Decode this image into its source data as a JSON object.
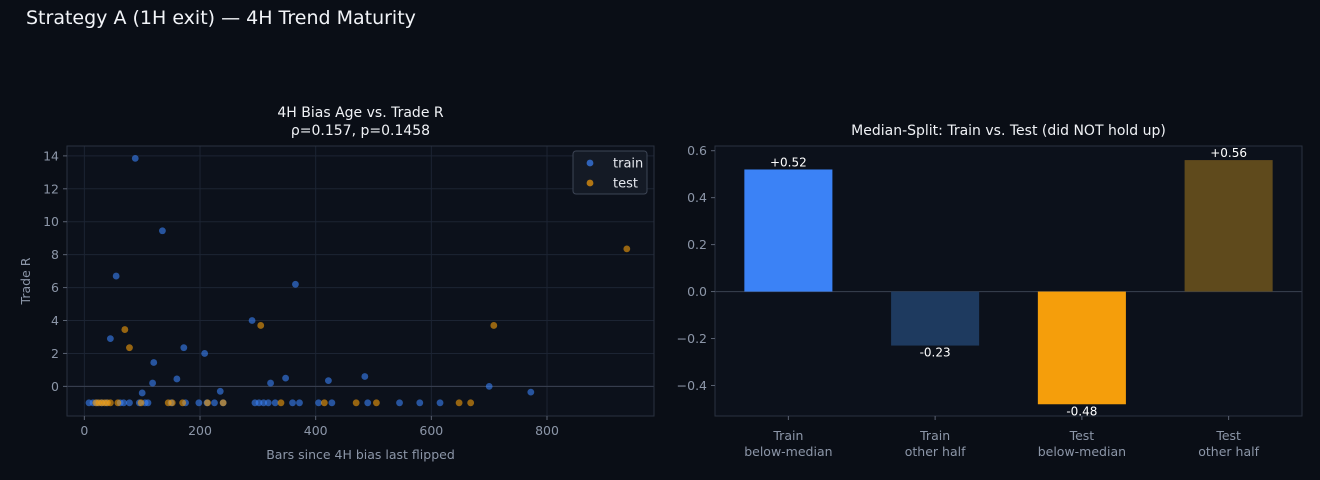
{
  "page_title": "Strategy A (1H exit) — 4H Trend Maturity",
  "chart_data": [
    {
      "type": "scatter",
      "title_line1": "4H Bias Age vs. Trade R",
      "title_line2": "ρ=0.157, p=0.1458",
      "xlabel": "Bars since 4H bias last flipped",
      "ylabel": "Trade R",
      "xlim": [
        -30,
        985
      ],
      "ylim": [
        -1.8,
        14.6
      ],
      "xticks": [
        0,
        200,
        400,
        600,
        800
      ],
      "yticks": [
        0,
        2,
        4,
        6,
        8,
        10,
        12,
        14
      ],
      "grid": true,
      "legend_position": "top-right",
      "series": [
        {
          "name": "train",
          "color": "#3b82f6",
          "points": [
            [
              8,
              -1
            ],
            [
              15,
              -1
            ],
            [
              22,
              -1
            ],
            [
              30,
              -1
            ],
            [
              38,
              -1
            ],
            [
              45,
              2.9
            ],
            [
              55,
              6.7
            ],
            [
              62,
              -1
            ],
            [
              68,
              -1
            ],
            [
              78,
              -1
            ],
            [
              88,
              13.85
            ],
            [
              95,
              -1
            ],
            [
              100,
              -0.4
            ],
            [
              105,
              -1
            ],
            [
              110,
              -1
            ],
            [
              118,
              0.2
            ],
            [
              120,
              1.45
            ],
            [
              135,
              9.45
            ],
            [
              150,
              -1
            ],
            [
              160,
              0.45
            ],
            [
              172,
              2.35
            ],
            [
              175,
              -1
            ],
            [
              198,
              -1
            ],
            [
              208,
              2.0
            ],
            [
              212,
              -1
            ],
            [
              225,
              -1
            ],
            [
              235,
              -0.3
            ],
            [
              240,
              -1
            ],
            [
              290,
              4.0
            ],
            [
              295,
              -1
            ],
            [
              302,
              -1
            ],
            [
              310,
              -1
            ],
            [
              318,
              -1
            ],
            [
              322,
              0.2
            ],
            [
              330,
              -1
            ],
            [
              348,
              0.5
            ],
            [
              360,
              -1
            ],
            [
              365,
              6.2
            ],
            [
              372,
              -1
            ],
            [
              405,
              -1
            ],
            [
              422,
              0.35
            ],
            [
              428,
              -1
            ],
            [
              485,
              0.6
            ],
            [
              490,
              -1
            ],
            [
              545,
              -1
            ],
            [
              580,
              -1
            ],
            [
              615,
              -1
            ],
            [
              700,
              0
            ],
            [
              772,
              -0.35
            ]
          ]
        },
        {
          "name": "test",
          "color": "#f59e0b",
          "points": [
            [
              20,
              -1
            ],
            [
              25,
              -1
            ],
            [
              30,
              -1
            ],
            [
              35,
              -1
            ],
            [
              40,
              -1
            ],
            [
              45,
              -1
            ],
            [
              58,
              -1
            ],
            [
              70,
              3.45
            ],
            [
              78,
              2.35
            ],
            [
              98,
              -1
            ],
            [
              145,
              -1
            ],
            [
              152,
              -1
            ],
            [
              170,
              -1
            ],
            [
              213,
              -1
            ],
            [
              240,
              -1
            ],
            [
              305,
              3.7
            ],
            [
              340,
              -1
            ],
            [
              415,
              -1
            ],
            [
              470,
              -1
            ],
            [
              505,
              -1
            ],
            [
              648,
              -1
            ],
            [
              668,
              -1
            ],
            [
              708,
              3.7
            ],
            [
              938,
              8.35
            ]
          ]
        }
      ]
    },
    {
      "type": "bar",
      "title": "Median-Split: Train vs. Test (did NOT hold up)",
      "categories": [
        [
          "Train",
          "below-median"
        ],
        [
          "Train",
          "other half"
        ],
        [
          "Test",
          "below-median"
        ],
        [
          "Test",
          "other half"
        ]
      ],
      "values": [
        0.52,
        -0.23,
        -0.48,
        0.56
      ],
      "value_labels": [
        "+0.52",
        "-0.23",
        "-0.48",
        "+0.56"
      ],
      "colors": [
        "#3b82f6",
        "#1e3a5f",
        "#f59e0b",
        "#5f4a1c"
      ],
      "ylim": [
        -0.53,
        0.62
      ],
      "yticks": [
        -0.4,
        -0.2,
        0.0,
        0.2,
        0.4,
        0.6
      ],
      "ytick_labels": [
        "−0.4",
        "−0.2",
        "0.0",
        "0.2",
        "0.4",
        "0.6"
      ],
      "grid": false
    }
  ]
}
